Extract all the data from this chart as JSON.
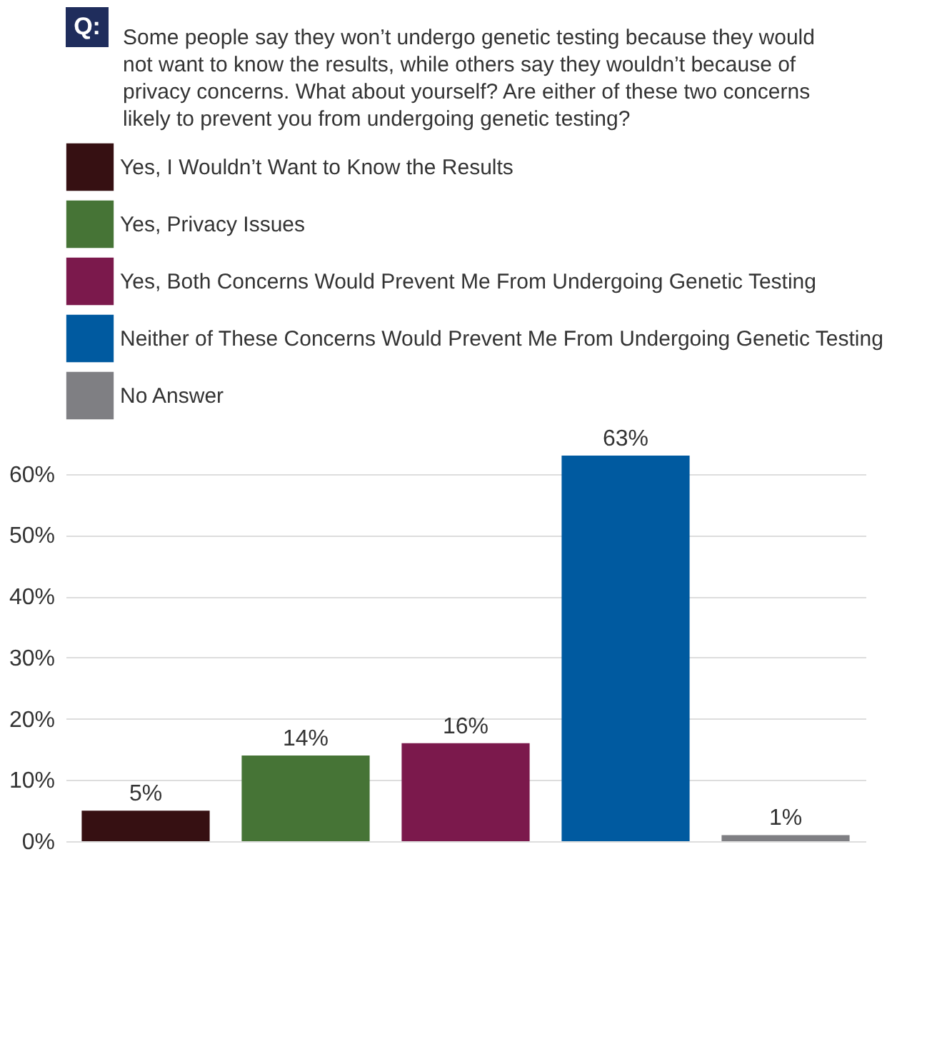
{
  "chart_data": {
    "type": "bar",
    "title": "Some people say they won’t undergo genetic testing because they would not want to know the results, while others say they wouldn’t because of privacy concerns. What about yourself? Are either of these two concerns likely to prevent you from undergoing genetic testing?",
    "annotations": [
      "Q:"
    ],
    "categories": [
      null,
      null,
      null,
      null,
      null
    ],
    "series": [
      {
        "name": "Yes, I Wouldn’t Want to Know the Results",
        "color": "#361012",
        "values": [
          5,
          null,
          null,
          null,
          null
        ],
        "value_labels": [
          "5%",
          null,
          null,
          null,
          null
        ]
      },
      {
        "name": "Yes, Privacy Issues",
        "color": "#467436",
        "values": [
          null,
          14,
          null,
          null,
          null
        ],
        "value_labels": [
          null,
          "14%",
          null,
          null,
          null
        ]
      },
      {
        "name": "Yes, Both Concerns Would Prevent Me From Undergoing Genetic Testing",
        "color": "#7b194c",
        "values": [
          null,
          null,
          16,
          null,
          null
        ],
        "value_labels": [
          null,
          null,
          "16%",
          null,
          null
        ]
      },
      {
        "name": "Neither of These Concerns Would Prevent Me From Undergoing Genetic Testing",
        "color": "#005aa0",
        "values": [
          null,
          null,
          null,
          63,
          null
        ],
        "value_labels": [
          null,
          null,
          null,
          "63%",
          null
        ]
      },
      {
        "name": "No Answer",
        "color": "#7f7f83",
        "values": [
          null,
          null,
          null,
          null,
          1
        ],
        "value_labels": [
          null,
          null,
          null,
          null,
          "1%"
        ]
      }
    ],
    "ylim": [
      0,
      63
    ],
    "yticks": [
      {
        "value": 0,
        "label": "0%"
      },
      {
        "value": 10,
        "label": "10%"
      },
      {
        "value": 20,
        "label": "20%"
      },
      {
        "value": 30,
        "label": "30%"
      },
      {
        "value": 40,
        "label": "40%"
      },
      {
        "value": 50,
        "label": "50%"
      },
      {
        "value": 60,
        "label": "60%"
      }
    ],
    "grid": "y",
    "legend": "top"
  }
}
